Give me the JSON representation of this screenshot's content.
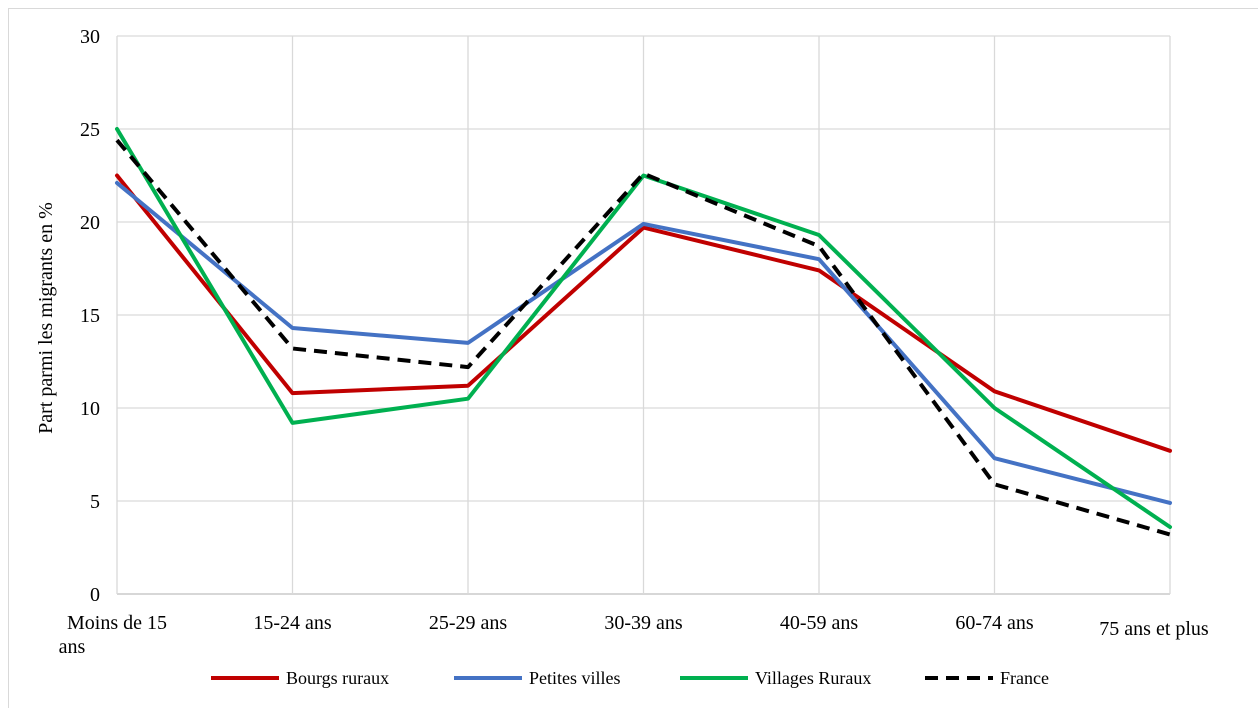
{
  "chart_data": {
    "type": "line",
    "title": "",
    "xlabel": "",
    "ylabel": "Part parmi les migrants en %",
    "ylim": [
      0,
      30
    ],
    "yticks": [
      0,
      5,
      10,
      15,
      20,
      25,
      30
    ],
    "grid": true,
    "legend_position": "bottom",
    "categories": [
      "Moins de 15 ans",
      "15-24 ans",
      "25-29 ans",
      "30-39 ans",
      "40-59 ans",
      "60-74 ans",
      "75 ans et plus"
    ],
    "series": [
      {
        "name": "Bourgs ruraux",
        "color": "#c00000",
        "dash": false,
        "values": [
          22.5,
          10.8,
          11.2,
          19.7,
          17.4,
          10.9,
          7.7
        ]
      },
      {
        "name": "Petites villes",
        "color": "#4472c4",
        "dash": false,
        "values": [
          22.1,
          14.3,
          13.5,
          19.9,
          18.0,
          7.3,
          4.9
        ]
      },
      {
        "name": "Villages Ruraux",
        "color": "#00b050",
        "dash": false,
        "values": [
          25.0,
          9.2,
          10.5,
          22.5,
          19.3,
          10.0,
          3.6
        ]
      },
      {
        "name": "France",
        "color": "#000000",
        "dash": true,
        "values": [
          24.4,
          13.2,
          12.2,
          22.6,
          18.7,
          5.9,
          3.2
        ]
      }
    ]
  }
}
